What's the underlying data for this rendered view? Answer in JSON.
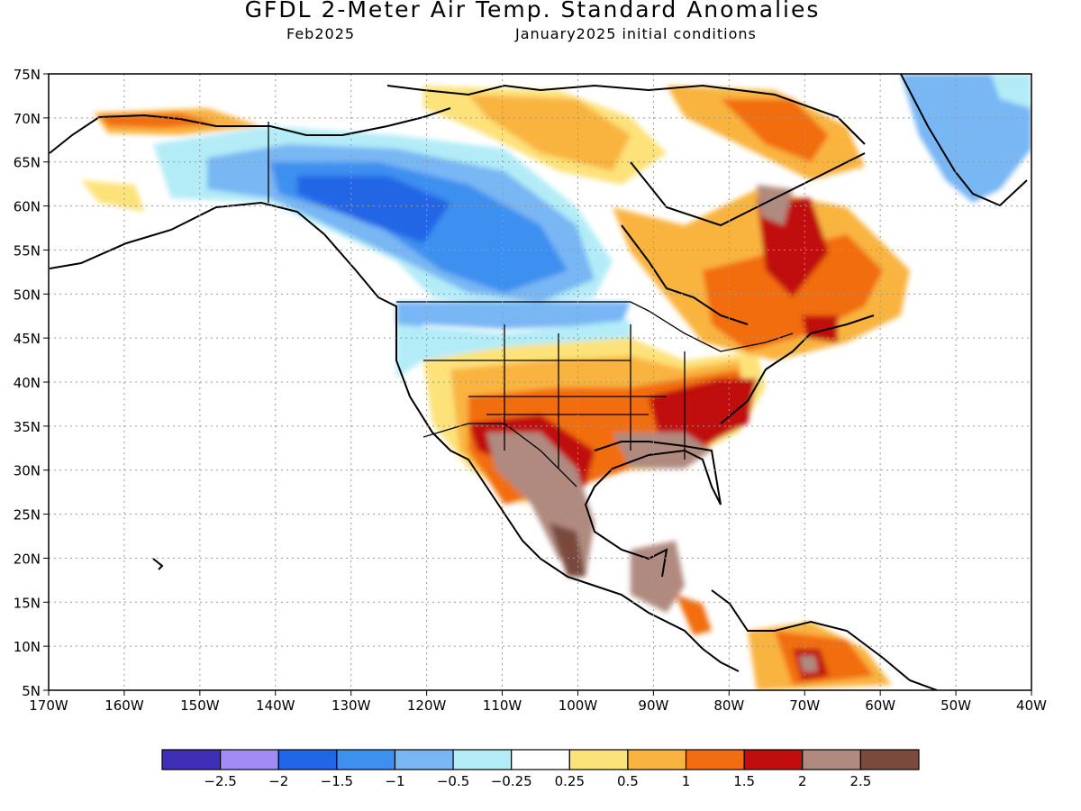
{
  "header": {
    "title": "GFDL 2-Meter Air Temp. Standard Anomalies",
    "forecast_month": "Feb2025",
    "init_conditions": "January2025 initial conditions"
  },
  "map": {
    "lat_labels": [
      "75N",
      "70N",
      "65N",
      "60N",
      "55N",
      "50N",
      "45N",
      "40N",
      "35N",
      "30N",
      "25N",
      "20N",
      "15N",
      "10N",
      "5N"
    ],
    "lon_labels": [
      "170W",
      "160W",
      "150W",
      "140W",
      "130W",
      "120W",
      "110W",
      "100W",
      "90W",
      "80W",
      "70W",
      "60W",
      "50W",
      "40W"
    ],
    "grid": "dotted",
    "region": "North America",
    "anomaly_regions": [
      {
        "area": "Western Canada / Alaska interior",
        "class": "-1.5 to -1"
      },
      {
        "area": "Northwest US",
        "class": "-0.5 to -0.25"
      },
      {
        "area": "Southwest US / Northern Mexico",
        "class": "above 2"
      },
      {
        "area": "Southeast US",
        "class": "above 2"
      },
      {
        "area": "Ohio Valley / Mid-Atlantic",
        "class": "1.5 to 2"
      },
      {
        "area": "Quebec / Labrador",
        "class": "1 to 2"
      },
      {
        "area": "Greenland",
        "class": "-1 to -0.5"
      }
    ]
  },
  "colorbar": {
    "colors": [
      "#3f2fb8",
      "#a08cf2",
      "#2166e6",
      "#3e8ff0",
      "#78b6f4",
      "#b3ecf7",
      "#ffffff",
      "#fde27a",
      "#f9b43f",
      "#f26d10",
      "#c00d0d",
      "#b08a7f",
      "#7a4a3c"
    ],
    "labels": [
      "-2.5",
      "-2",
      "-1.5",
      "-1",
      "-0.5",
      "-0.25",
      "0.25",
      "0.5",
      "1",
      "1.5",
      "2",
      "2.5"
    ]
  }
}
